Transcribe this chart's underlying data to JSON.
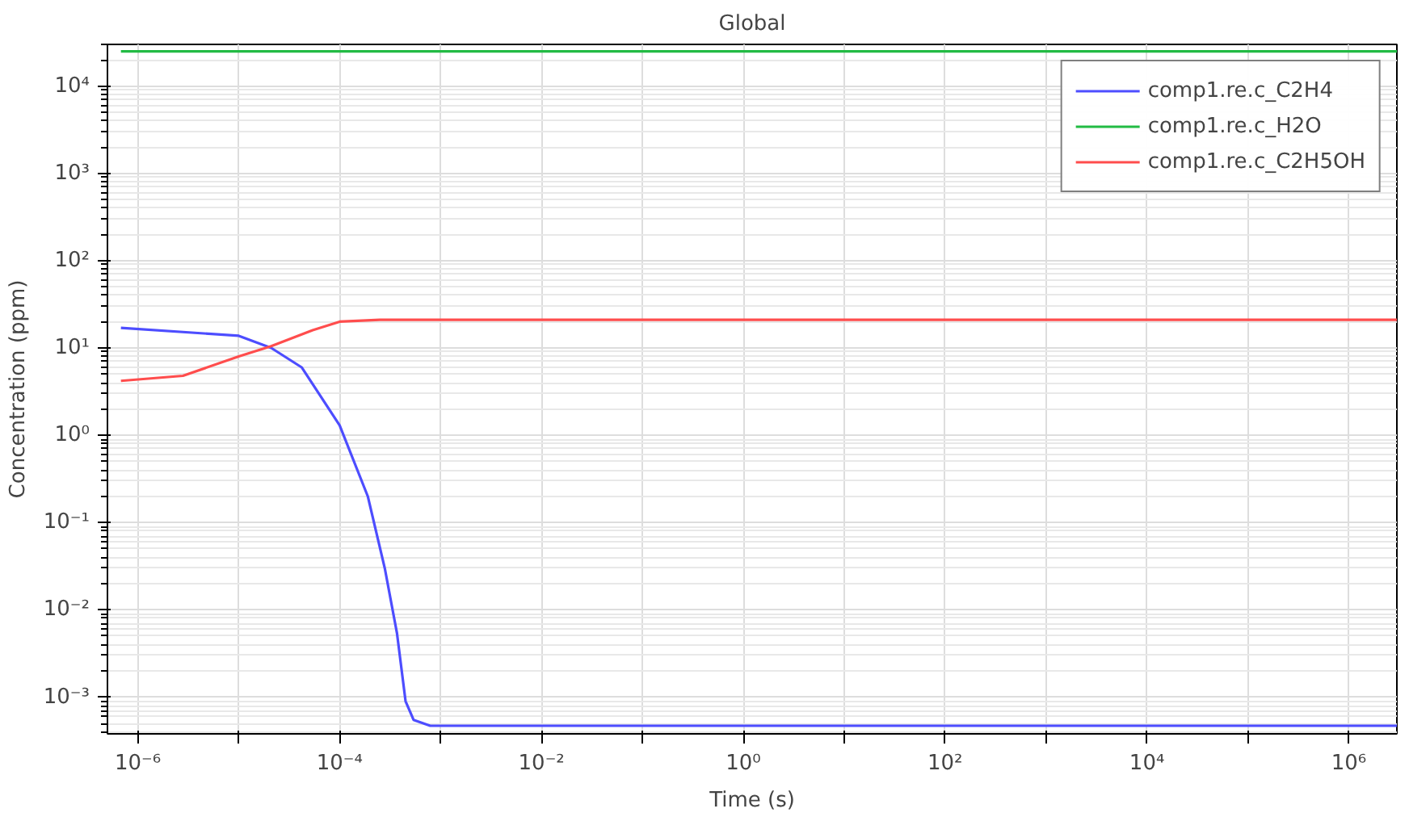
{
  "chart_data": {
    "type": "line",
    "title": "Global",
    "xlabel": "Time (s)",
    "ylabel": "Concentration (ppm)",
    "log": "xy",
    "grid": true,
    "legend": "top right",
    "marker": "none",
    "line_style": "solid",
    "xlim": [
      5e-07,
      3000000.0
    ],
    "ylim": [
      0.00038,
      30000
    ],
    "xticks": [
      {
        "value": 1e-06,
        "label": "10⁻⁶"
      },
      {
        "value": 1e-05,
        "label": null
      },
      {
        "value": 0.0001,
        "label": "10⁻⁴"
      },
      {
        "value": 0.001,
        "label": null
      },
      {
        "value": 0.01,
        "label": "10⁻²"
      },
      {
        "value": 0.1,
        "label": null
      },
      {
        "value": 1,
        "label": "10⁰"
      },
      {
        "value": 10,
        "label": null
      },
      {
        "value": 100,
        "label": "10²"
      },
      {
        "value": 1000,
        "label": null
      },
      {
        "value": 10000,
        "label": "10⁴"
      },
      {
        "value": 100000,
        "label": null
      },
      {
        "value": 1000000,
        "label": "10⁶"
      }
    ],
    "yticks": [
      {
        "value": 0.001,
        "label": "10⁻³"
      },
      {
        "value": 0.01,
        "label": "10⁻²"
      },
      {
        "value": 0.1,
        "label": "10⁻¹"
      },
      {
        "value": 1,
        "label": "10⁰"
      },
      {
        "value": 10,
        "label": "10¹"
      },
      {
        "value": 100,
        "label": "10²"
      },
      {
        "value": 1000,
        "label": "10³"
      },
      {
        "value": 10000,
        "label": "10⁴"
      }
    ],
    "series": [
      {
        "name": "comp1.re.c_C2H4",
        "color": "#4d4dff",
        "x": [
          6.8e-07,
          1e-05,
          2.1e-05,
          4.2e-05,
          0.0001,
          0.00019,
          0.00028,
          0.00037,
          0.00045,
          0.00054,
          0.00079,
          3000000.0
        ],
        "values": [
          17,
          13.8,
          10,
          6,
          1.3,
          0.2,
          0.03,
          0.0054,
          0.0009,
          0.00055,
          0.00047,
          0.00047
        ]
      },
      {
        "name": "comp1.re.c_H2O",
        "color": "#22bb44",
        "x": [
          6.8e-07,
          3000000.0
        ],
        "values": [
          25000,
          25000
        ]
      },
      {
        "name": "comp1.re.c_C2H5OH",
        "color": "#ff4d4d",
        "x": [
          6.8e-07,
          2.8e-06,
          1e-05,
          2.1e-05,
          5.4e-05,
          0.0001,
          0.00025,
          3000000.0
        ],
        "values": [
          4.2,
          4.8,
          8,
          10.5,
          16,
          20,
          21,
          21
        ]
      }
    ]
  }
}
